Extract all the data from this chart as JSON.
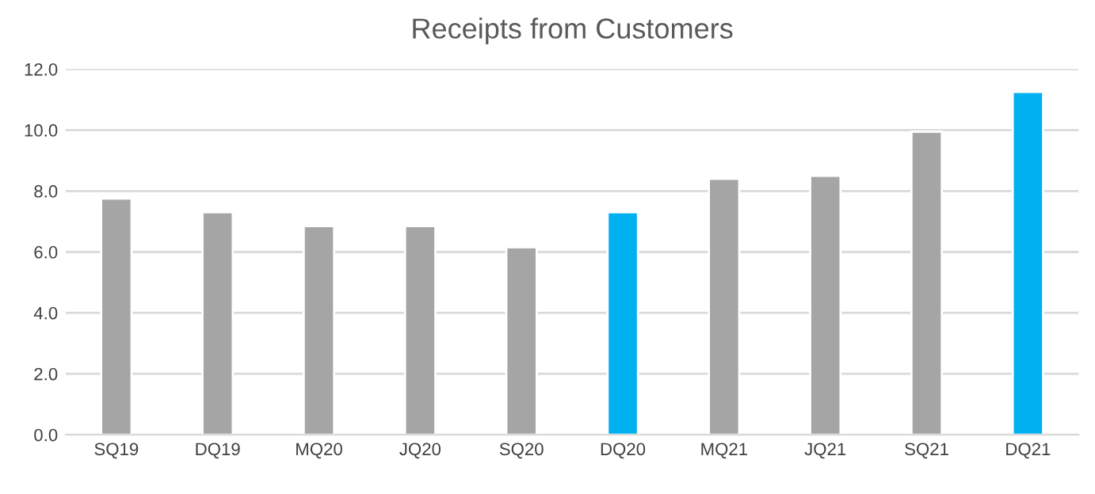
{
  "chart_data": {
    "type": "bar",
    "title": "Receipts from Customers",
    "categories": [
      "SQ19",
      "DQ19",
      "MQ20",
      "JQ20",
      "SQ20",
      "DQ20",
      "MQ21",
      "JQ21",
      "SQ21",
      "DQ21"
    ],
    "values": [
      7.75,
      7.3,
      6.85,
      6.85,
      6.15,
      7.3,
      8.4,
      8.5,
      9.95,
      11.25
    ],
    "colors": [
      "#a5a5a5",
      "#a5a5a5",
      "#a5a5a5",
      "#a5a5a5",
      "#a5a5a5",
      "#00b0f0",
      "#a5a5a5",
      "#a5a5a5",
      "#a5a5a5",
      "#00b0f0"
    ],
    "ylim": [
      0,
      12
    ],
    "yticks": [
      {
        "value": 0,
        "label": "0.0"
      },
      {
        "value": 2,
        "label": "2.0"
      },
      {
        "value": 4,
        "label": "4.0"
      },
      {
        "value": 6,
        "label": "6.0"
      },
      {
        "value": 8,
        "label": "8.0"
      },
      {
        "value": 10,
        "label": "10.0"
      },
      {
        "value": 12,
        "label": "12.0"
      }
    ],
    "grid": "y",
    "legend": false
  }
}
